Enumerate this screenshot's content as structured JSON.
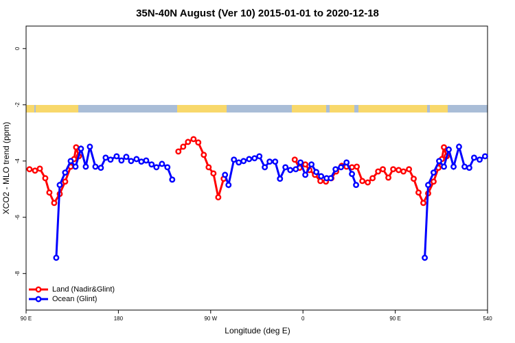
{
  "chart_data": {
    "type": "line",
    "title": "35N-40N August (Ver 10)   2015-01-01 to 2020-12-18",
    "x_label": "Longitude (deg E)",
    "y_label": "XCO2 - MLO trend (ppm)",
    "xlim": [
      90,
      540
    ],
    "ylim": [
      -9.3,
      0.8
    ],
    "xticks": [
      {
        "value": 90,
        "label": "90 E"
      },
      180,
      {
        "value": 270,
        "label": "90 W"
      },
      {
        "value": 360,
        "label": "0"
      },
      {
        "value": 450,
        "label": "90 E"
      },
      540
    ],
    "yticks": [
      0,
      -2,
      -4,
      -6,
      -8
    ],
    "legend": "bottom-left",
    "series": [
      {
        "name": "Land (Nadir&Glint)",
        "color": "#ff0000",
        "x": [
          93.3,
          98.7,
          103.4,
          108.7,
          112.7,
          117.4,
          122.8,
          128.1,
          133.5,
          136.8,
          138.8,
          141.5,
          null,
          238.5,
          243.2,
          247.9,
          253.3,
          257.9,
          263.3,
          268.0,
          272.7,
          277.4,
          282.7,
          null,
          352.0,
          356.7,
          362.3,
          366.3,
          371.7,
          377.0,
          382.4,
          387.7,
          392.4,
          397.8,
          402.5,
          407.8,
          412.5,
          417.9,
          423.2,
          427.9,
          433.3,
          437.9,
          443.3,
          448.0,
          453.3,
          458.0,
          463.4,
          468.0,
          472.7,
          477.4,
          482.1,
          487.4,
          492.1,
          495.5,
          497.5,
          500.2
        ],
        "values": [
          -4.29,
          -4.34,
          -4.27,
          -4.61,
          -5.12,
          -5.49,
          -5.17,
          -4.73,
          -4.2,
          -3.93,
          -3.51,
          -3.83,
          null,
          -3.66,
          -3.49,
          -3.32,
          -3.22,
          -3.34,
          -3.78,
          -4.22,
          -4.44,
          -5.29,
          -4.63,
          null,
          -3.95,
          -4.24,
          -4.12,
          -4.32,
          -4.49,
          -4.71,
          -4.73,
          -4.61,
          -4.37,
          -4.17,
          -4.2,
          -4.22,
          -4.2,
          -4.71,
          -4.76,
          -4.61,
          -4.37,
          -4.29,
          -4.59,
          -4.29,
          -4.32,
          -4.37,
          -4.29,
          -4.63,
          -5.12,
          -5.49,
          -5.15,
          -4.73,
          -4.24,
          -3.93,
          -3.51,
          -3.83
        ]
      },
      {
        "name": "Ocean (Glint)",
        "color": "#0000ff",
        "x": [
          119.4,
          122.8,
          128.1,
          133.5,
          138.2,
          143.5,
          148.2,
          152.2,
          157.6,
          162.9,
          167.6,
          172.3,
          178.3,
          183.0,
          187.7,
          192.4,
          197.7,
          202.4,
          207.1,
          212.4,
          217.1,
          222.5,
          227.8,
          232.5,
          null,
          284.0,
          287.4,
          292.7,
          297.4,
          302.1,
          307.5,
          312.8,
          317.5,
          322.8,
          327.5,
          332.9,
          337.6,
          342.9,
          347.6,
          353.0,
          357.6,
          362.3,
          368.3,
          373.0,
          377.7,
          383.1,
          387.1,
          391.8,
          397.1,
          402.5,
          407.8,
          411.8,
          null,
          478.8,
          482.1,
          487.4,
          492.8,
          497.5,
          502.2,
          506.9,
          512.2,
          517.6,
          522.2,
          526.9,
          532.3,
          537.6
        ],
        "values": [
          -7.44,
          -4.85,
          -4.41,
          -4.0,
          -4.2,
          -3.56,
          -4.2,
          -3.49,
          -4.2,
          -4.24,
          -3.88,
          -3.95,
          -3.83,
          -3.98,
          -3.85,
          -4.0,
          -3.93,
          -4.02,
          -3.98,
          -4.12,
          -4.22,
          -4.1,
          -4.22,
          -4.66,
          null,
          -4.49,
          -4.85,
          -3.95,
          -4.05,
          -4.0,
          -3.93,
          -3.9,
          -3.83,
          -4.22,
          -4.02,
          -4.02,
          -4.63,
          -4.22,
          -4.32,
          -4.29,
          -4.05,
          -4.49,
          -4.12,
          -4.39,
          -4.54,
          -4.61,
          -4.61,
          -4.29,
          -4.22,
          -4.05,
          -4.46,
          -4.85,
          null,
          -7.44,
          -4.85,
          -4.41,
          -4.0,
          -4.2,
          -3.59,
          -4.2,
          -3.49,
          -4.2,
          -4.24,
          -3.88,
          -3.95,
          -3.83
        ]
      }
    ]
  }
}
